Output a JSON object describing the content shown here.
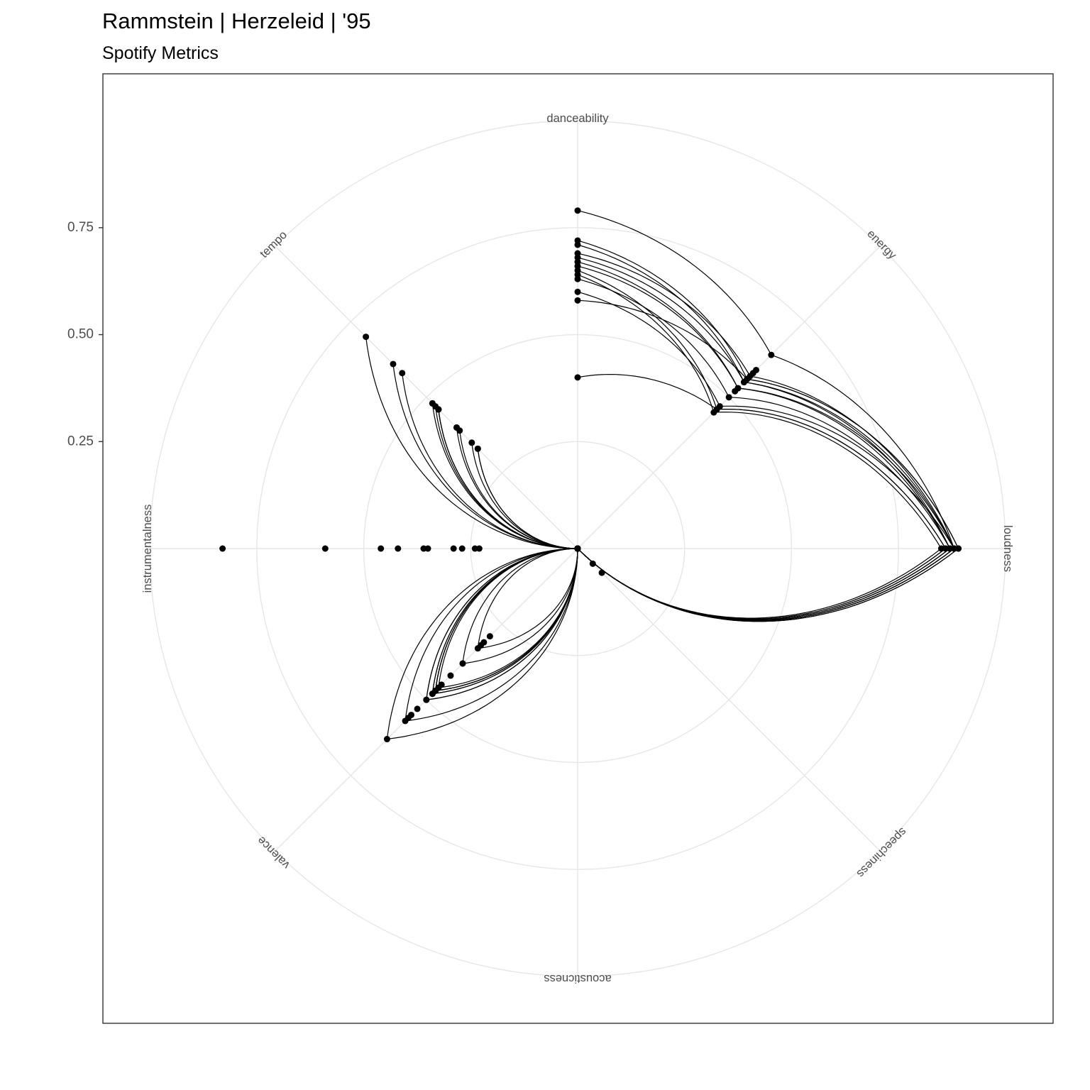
{
  "chart_data": {
    "type": "radar",
    "title": "Rammstein | Herzeleid | '95",
    "subtitle": "Spotify Metrics",
    "axes": [
      "danceability",
      "energy",
      "loudness",
      "speechiness",
      "acousticness",
      "valence",
      "instrumentalness",
      "tempo"
    ],
    "r_ticks": [
      {
        "value": 0.25,
        "label": "0.25"
      },
      {
        "value": 0.5,
        "label": "0.50"
      },
      {
        "value": 0.75,
        "label": "0.75"
      }
    ],
    "r_grid": [
      0.25,
      0.5,
      0.75,
      1.0
    ],
    "r_max": 1.05,
    "curve_type": "arc",
    "grid": true,
    "series_color": "#000000",
    "tracks": [
      [
        0.79,
        0.64,
        0.88,
        0.0,
        0.0,
        0.57,
        0.0,
        0.61
      ],
      [
        0.72,
        0.56,
        0.89,
        0.0,
        0.0,
        0.48,
        0.0,
        0.48
      ],
      [
        0.71,
        0.55,
        0.87,
        0.0,
        0.0,
        0.47,
        0.0,
        0.46
      ],
      [
        0.69,
        0.57,
        0.88,
        0.0,
        0.0,
        0.48,
        0.0,
        0.46
      ],
      [
        0.68,
        0.55,
        0.88,
        0.0,
        0.0,
        0.47,
        0.0,
        0.46
      ],
      [
        0.67,
        0.53,
        0.87,
        0.0,
        0.0,
        0.47,
        0.0,
        0.4
      ],
      [
        0.66,
        0.53,
        0.88,
        0.0,
        0.0,
        0.46,
        0.0,
        0.39
      ],
      [
        0.65,
        0.46,
        0.86,
        0.0,
        0.0,
        0.47,
        0.0,
        0.35
      ],
      [
        0.64,
        0.45,
        0.85,
        0.0,
        0.0,
        0.5,
        0.0,
        0.47
      ],
      [
        0.63,
        0.5,
        0.87,
        0.0,
        0.0,
        0.38,
        0.0,
        0.33
      ],
      [
        0.6,
        0.47,
        0.88,
        0.0,
        0.0,
        0.33,
        0.0,
        0.58
      ],
      [
        0.58,
        0.56,
        0.89,
        0.0,
        0.0,
        0.63,
        0.0,
        0.7
      ],
      [
        0.4,
        0.46,
        0.86,
        0.0,
        0.0,
        0.5,
        0.0,
        0.33
      ]
    ],
    "extra_points": [
      {
        "axis": "energy",
        "r": 0.59
      },
      {
        "axis": "energy",
        "r": 0.58
      },
      {
        "axis": "energy",
        "r": 0.52
      },
      {
        "axis": "speechiness",
        "r": 0.08
      },
      {
        "axis": "speechiness",
        "r": 0.05
      },
      {
        "axis": "valence",
        "r": 0.29
      },
      {
        "axis": "valence",
        "r": 0.32
      },
      {
        "axis": "valence",
        "r": 0.31
      },
      {
        "axis": "valence",
        "r": 0.38
      },
      {
        "axis": "valence",
        "r": 0.42
      },
      {
        "axis": "valence",
        "r": 0.45
      },
      {
        "axis": "valence",
        "r": 0.48
      },
      {
        "axis": "valence",
        "r": 0.56
      },
      {
        "axis": "valence",
        "r": 0.53
      },
      {
        "axis": "valence",
        "r": 0.55
      },
      {
        "axis": "instrumentalness",
        "r": 0.83
      },
      {
        "axis": "instrumentalness",
        "r": 0.59
      },
      {
        "axis": "instrumentalness",
        "r": 0.46
      },
      {
        "axis": "instrumentalness",
        "r": 0.42
      },
      {
        "axis": "instrumentalness",
        "r": 0.36
      },
      {
        "axis": "instrumentalness",
        "r": 0.35
      },
      {
        "axis": "instrumentalness",
        "r": 0.29
      },
      {
        "axis": "instrumentalness",
        "r": 0.27
      },
      {
        "axis": "instrumentalness",
        "r": 0.24
      },
      {
        "axis": "instrumentalness",
        "r": 0.23
      },
      {
        "axis": "tempo",
        "r": 0.4
      },
      {
        "axis": "tempo",
        "r": 0.48
      }
    ]
  }
}
